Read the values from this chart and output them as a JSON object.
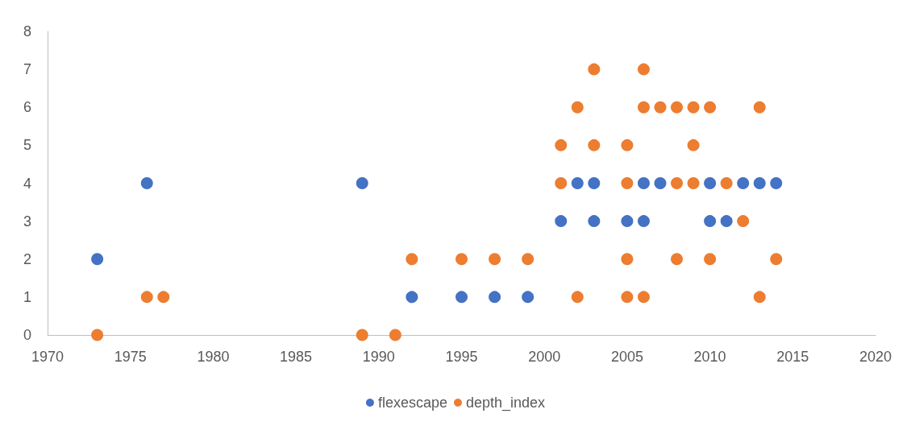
{
  "chart_data": {
    "type": "scatter",
    "marker": "circle",
    "grid": false,
    "legend": "bottom",
    "xlim": [
      1970,
      2020
    ],
    "xticks": [
      1970,
      1975,
      1980,
      1985,
      1990,
      1995,
      2000,
      2005,
      2010,
      2015,
      2020
    ],
    "ylim": [
      0,
      8
    ],
    "yticks": [
      0,
      1,
      2,
      3,
      4,
      5,
      6,
      7,
      8
    ],
    "series": [
      {
        "name": "flexescape",
        "color": "#4472c4",
        "x": [
          1973,
          1976,
          1989,
          1992,
          1995,
          1997,
          1999,
          2001,
          2002,
          2003,
          2003,
          2005,
          2006,
          2006,
          2007,
          2010,
          2010,
          2011,
          2012,
          2013,
          2014
        ],
        "values": [
          2,
          4,
          4,
          1,
          1,
          1,
          1,
          3,
          4,
          4,
          3,
          3,
          4,
          3,
          4,
          4,
          3,
          3,
          4,
          4,
          4
        ]
      },
      {
        "name": "depth_index",
        "color": "#ed7d31",
        "x": [
          1973,
          1976,
          1977,
          1989,
          1991,
          1992,
          1995,
          1997,
          1999,
          2001,
          2001,
          2002,
          2002,
          2003,
          2003,
          2005,
          2005,
          2005,
          2005,
          2006,
          2006,
          2006,
          2007,
          2008,
          2008,
          2008,
          2009,
          2009,
          2009,
          2010,
          2010,
          2011,
          2012,
          2013,
          2013,
          2014
        ],
        "values": [
          0,
          1,
          1,
          0,
          0,
          2,
          2,
          2,
          2,
          5,
          4,
          6,
          1,
          7,
          5,
          5,
          4,
          2,
          1,
          7,
          6,
          1,
          6,
          6,
          4,
          2,
          6,
          5,
          4,
          6,
          2,
          4,
          3,
          6,
          1,
          2
        ]
      }
    ]
  }
}
